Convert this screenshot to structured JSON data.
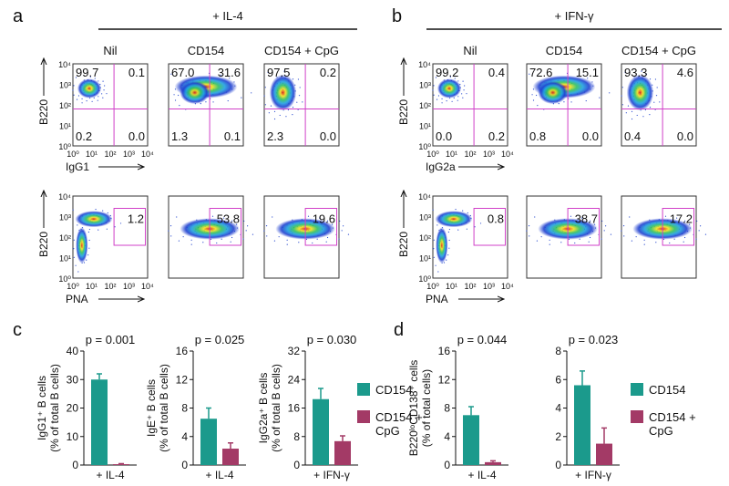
{
  "panels": [
    {
      "label": "a",
      "condition": "+ IL-4",
      "columns": [
        "Nil",
        "CD154",
        "CD154 + CpG"
      ],
      "top": {
        "y_label": "B220",
        "x_label": "IgG1",
        "quadrants": [
          [
            "99.7",
            "0.1",
            "0.2",
            "0.0"
          ],
          [
            "67.0",
            "31.6",
            "1.3",
            "0.1"
          ],
          [
            "97.5",
            "0.2",
            "2.3",
            "0.0"
          ]
        ]
      },
      "bottom": {
        "y_label": "B220",
        "x_label": "PNA",
        "gates": [
          "1.2",
          "53.8",
          "19.6"
        ]
      }
    },
    {
      "label": "b",
      "condition": "+ IFN-γ",
      "columns": [
        "Nil",
        "CD154",
        "CD154 + CpG"
      ],
      "top": {
        "y_label": "B220",
        "x_label": "IgG2a",
        "quadrants": [
          [
            "99.2",
            "0.4",
            "0.0",
            "0.2"
          ],
          [
            "72.6",
            "15.1",
            "0.8",
            "0.0"
          ],
          [
            "93.3",
            "4.6",
            "0.4",
            "0.0"
          ]
        ]
      },
      "bottom": {
        "y_label": "B220",
        "x_label": "PNA",
        "gates": [
          "0.8",
          "38.7",
          "17.2"
        ]
      }
    }
  ],
  "flow_ticks": [
    "10⁰",
    "10¹",
    "10²",
    "10³",
    "10⁴"
  ],
  "chart_panels": [
    {
      "label": "c"
    },
    {
      "label": "d"
    }
  ],
  "chart_data": [
    {
      "type": "bar",
      "ylabel": [
        "IgG1⁺ B cells",
        "(% of total B cells)"
      ],
      "annotation": "p = 0.001",
      "categories": [
        "+ IL-4"
      ],
      "series": [
        {
          "name": "CD154",
          "color": "#1b9a8c",
          "values": [
            30
          ],
          "errors": [
            2
          ]
        },
        {
          "name": "CD154 + CpG",
          "color": "#a33a66",
          "values": [
            0.3
          ],
          "errors": [
            0.2
          ]
        }
      ],
      "ylim": [
        0,
        40
      ],
      "yticks": [
        0,
        10,
        20,
        30,
        40
      ],
      "legend": false
    },
    {
      "type": "bar",
      "ylabel": [
        "IgE⁺ B cells",
        "(% of total B cells)"
      ],
      "annotation": "p = 0.025",
      "categories": [
        "+ IL-4"
      ],
      "series": [
        {
          "name": "CD154",
          "color": "#1b9a8c",
          "values": [
            6.5
          ],
          "errors": [
            1.5
          ]
        },
        {
          "name": "CD154 + CpG",
          "color": "#a33a66",
          "values": [
            2.3
          ],
          "errors": [
            0.8
          ]
        }
      ],
      "ylim": [
        0,
        16
      ],
      "yticks": [
        0,
        4,
        8,
        12,
        16
      ],
      "legend": false
    },
    {
      "type": "bar",
      "ylabel": [
        "IgG2a⁺ B cells",
        "(% of total B cells)"
      ],
      "annotation": "p = 0.030",
      "categories": [
        "+ IFN-γ"
      ],
      "series": [
        {
          "name": "CD154",
          "color": "#1b9a8c",
          "values": [
            18.5
          ],
          "errors": [
            3
          ]
        },
        {
          "name": "CD154 + CpG",
          "color": "#a33a66",
          "values": [
            6.7
          ],
          "errors": [
            1.5
          ]
        }
      ],
      "ylim": [
        0,
        32
      ],
      "yticks": [
        0,
        8,
        16,
        24,
        32
      ],
      "legend": true
    },
    {
      "type": "bar",
      "ylabel": [
        "B220ˡᵒCD138⁺ cells",
        "(% of total cells)"
      ],
      "annotation": "p = 0.044",
      "categories": [
        "+ IL-4"
      ],
      "series": [
        {
          "name": "CD154",
          "color": "#1b9a8c",
          "values": [
            7
          ],
          "errors": [
            1.2
          ]
        },
        {
          "name": "CD154 + CpG",
          "color": "#a33a66",
          "values": [
            0.4
          ],
          "errors": [
            0.2
          ]
        }
      ],
      "ylim": [
        0,
        16
      ],
      "yticks": [
        0,
        4,
        8,
        12,
        16
      ],
      "legend": false
    },
    {
      "type": "bar",
      "annotation": "p = 0.023",
      "categories": [
        "+ IFN-γ"
      ],
      "series": [
        {
          "name": "CD154",
          "color": "#1b9a8c",
          "values": [
            5.6
          ],
          "errors": [
            1
          ]
        },
        {
          "name": "CD154 + CpG",
          "color": "#a33a66",
          "values": [
            1.5
          ],
          "errors": [
            1.1
          ]
        }
      ],
      "ylim": [
        0,
        8
      ],
      "yticks": [
        0,
        2,
        4,
        6,
        8
      ],
      "legend": true
    }
  ]
}
